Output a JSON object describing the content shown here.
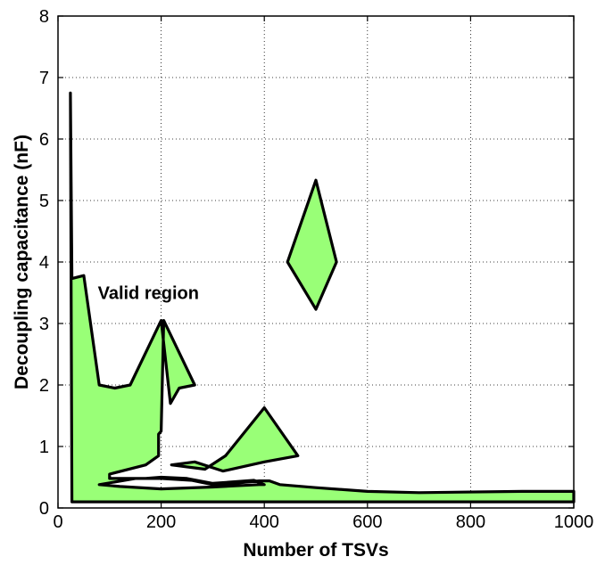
{
  "chart_data": {
    "type": "area",
    "title": "",
    "xlabel": "Number of TSVs",
    "ylabel": "Decoupling capacitance (nF)",
    "xlim": [
      0,
      1000
    ],
    "ylim": [
      0,
      8
    ],
    "xticks": [
      0,
      200,
      400,
      600,
      800,
      1000
    ],
    "yticks": [
      0,
      1,
      2,
      3,
      4,
      5,
      6,
      7,
      8
    ],
    "grid": true,
    "grid_style": "dotted",
    "fill_color": "#99ff77",
    "edge_color": "#000000",
    "annotation": {
      "text": "Valid region",
      "x": 155,
      "y": 3.5
    },
    "regions": [
      {
        "name": "main",
        "points": [
          [
            24,
            6.75
          ],
          [
            27,
            0.1
          ],
          [
            1000,
            0.1
          ],
          [
            1000,
            0.27
          ],
          [
            900,
            0.27
          ],
          [
            700,
            0.25
          ],
          [
            600,
            0.27
          ],
          [
            500,
            0.33
          ],
          [
            430,
            0.38
          ],
          [
            410,
            0.44
          ],
          [
            390,
            0.44
          ],
          [
            340,
            0.4
          ],
          [
            320,
            0.39
          ],
          [
            300,
            0.38
          ],
          [
            260,
            0.45
          ],
          [
            200,
            0.48
          ],
          [
            150,
            0.48
          ],
          [
            80,
            0.38
          ],
          [
            80,
            0.38
          ],
          [
            120,
            0.35
          ],
          [
            200,
            0.31
          ],
          [
            300,
            0.34
          ],
          [
            390,
            0.38
          ],
          [
            400,
            0.38
          ],
          [
            380,
            0.45
          ],
          [
            300,
            0.4
          ],
          [
            250,
            0.48
          ],
          [
            200,
            0.5
          ],
          [
            170,
            0.48
          ],
          [
            100,
            0.48
          ],
          [
            100,
            0.55
          ],
          [
            170,
            0.7
          ],
          [
            195,
            0.85
          ],
          [
            195,
            1.2
          ],
          [
            200,
            1.25
          ],
          [
            205,
            3.05
          ],
          [
            265,
            2.0
          ],
          [
            235,
            1.95
          ],
          [
            218,
            1.7
          ],
          [
            200,
            3.05
          ],
          [
            140,
            2.0
          ],
          [
            110,
            1.95
          ],
          [
            80,
            2.0
          ],
          [
            50,
            3.78
          ],
          [
            27,
            3.73
          ]
        ]
      },
      {
        "name": "middle-strip",
        "points": [
          [
            220,
            0.7
          ],
          [
            285,
            0.63
          ],
          [
            325,
            0.85
          ],
          [
            400,
            1.63
          ],
          [
            465,
            0.85
          ],
          [
            400,
            0.75
          ],
          [
            320,
            0.6
          ],
          [
            265,
            0.75
          ]
        ]
      },
      {
        "name": "diamond",
        "points": [
          [
            500,
            5.33
          ],
          [
            540,
            4.0
          ],
          [
            500,
            3.23
          ],
          [
            445,
            4.0
          ]
        ]
      }
    ]
  }
}
